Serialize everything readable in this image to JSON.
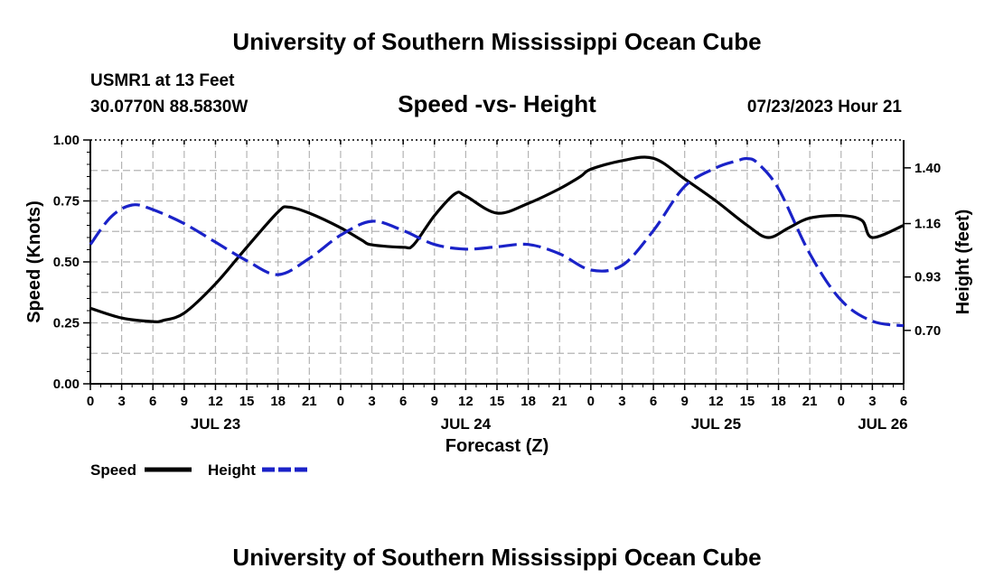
{
  "header": {
    "title": "University of Southern Mississippi Ocean Cube",
    "station": "USMR1 at 13 Feet",
    "coords": "30.0770N  88.5830W",
    "plot_title": "Speed -vs- Height",
    "datetime": "07/23/2023 Hour 21"
  },
  "footer": {
    "title": "University of Southern Mississippi Ocean Cube"
  },
  "legend": {
    "speed": "Speed",
    "height": "Height"
  },
  "colors": {
    "speed": "#000000",
    "height": "#1a22c8",
    "grid": "#b4b4b4"
  },
  "chart_data": {
    "type": "line",
    "title": "Speed -vs- Height",
    "xlabel": "Forecast (Z)",
    "ylabel": "Speed (Knots)",
    "y2label": "Height (feet)",
    "x_unit": "hours since 00Z JUL 23",
    "xlim": [
      0,
      78
    ],
    "ylim": [
      0,
      1
    ],
    "y2lim": [
      0.47,
      1.52
    ],
    "grid": true,
    "x_tick_values": [
      0,
      3,
      6,
      9,
      12,
      15,
      18,
      21,
      24,
      27,
      30,
      33,
      36,
      39,
      42,
      45,
      48,
      51,
      54,
      57,
      60,
      63,
      66,
      69,
      72,
      75,
      78
    ],
    "x_tick_labels": [
      "0",
      "3",
      "6",
      "9",
      "12",
      "15",
      "18",
      "21",
      "0",
      "3",
      "6",
      "9",
      "12",
      "15",
      "18",
      "21",
      "0",
      "3",
      "6",
      "9",
      "12",
      "15",
      "18",
      "21",
      "0",
      "3",
      "6"
    ],
    "x_date_labels": [
      {
        "x": 12,
        "label": "JUL 23"
      },
      {
        "x": 36,
        "label": "JUL 24"
      },
      {
        "x": 60,
        "label": "JUL 25"
      },
      {
        "x": 76,
        "label": "JUL 26"
      }
    ],
    "y_tick_values": [
      0,
      0.25,
      0.5,
      0.75,
      1.0
    ],
    "y_tick_labels": [
      "0.00",
      "0.25",
      "0.50",
      "0.75",
      "1.00"
    ],
    "y2_tick_values": [
      0.7,
      0.93,
      1.16,
      1.4
    ],
    "y2_tick_labels": [
      "0.70",
      "0.93",
      "1.16",
      "1.40"
    ],
    "series": [
      {
        "name": "Speed",
        "axis": "left",
        "style": "solid",
        "x": [
          0,
          3,
          6,
          7,
          9,
          12,
          15,
          18,
          19,
          21,
          24,
          26,
          27,
          30,
          31,
          33,
          35,
          36,
          39,
          42,
          45,
          47,
          48,
          51,
          54,
          57,
          60,
          63,
          65,
          67,
          69,
          72,
          74,
          75,
          78
        ],
        "y": [
          0.31,
          0.27,
          0.255,
          0.26,
          0.29,
          0.41,
          0.56,
          0.705,
          0.725,
          0.7,
          0.64,
          0.59,
          0.57,
          0.56,
          0.57,
          0.69,
          0.78,
          0.77,
          0.7,
          0.74,
          0.8,
          0.85,
          0.88,
          0.915,
          0.925,
          0.84,
          0.75,
          0.65,
          0.6,
          0.64,
          0.68,
          0.69,
          0.67,
          0.6,
          0.65
        ]
      },
      {
        "name": "Height",
        "axis": "right",
        "style": "dashed",
        "x": [
          0,
          2,
          4,
          6,
          9,
          12,
          15,
          18,
          21,
          24,
          27,
          30,
          33,
          36,
          39,
          42,
          45,
          48,
          51,
          54,
          57,
          60,
          62,
          63,
          64,
          66,
          69,
          72,
          75,
          78
        ],
        "y": [
          1.07,
          1.19,
          1.24,
          1.22,
          1.16,
          1.08,
          1.0,
          0.94,
          1.01,
          1.11,
          1.17,
          1.13,
          1.07,
          1.05,
          1.06,
          1.07,
          1.03,
          0.96,
          0.98,
          1.13,
          1.32,
          1.4,
          1.43,
          1.44,
          1.42,
          1.31,
          1.03,
          0.83,
          0.74,
          0.72
        ]
      }
    ],
    "legend_position": "bottom-left"
  }
}
